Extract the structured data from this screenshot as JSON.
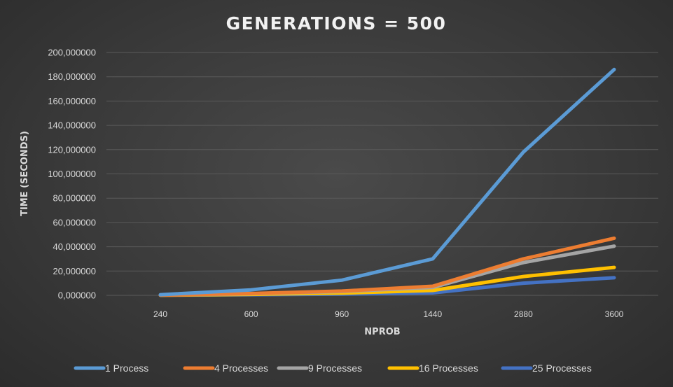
{
  "chart_data": {
    "type": "line",
    "title": "GENERATIONS = 500",
    "xlabel": "NPROB",
    "ylabel": "TIME (SECONDS)",
    "categories": [
      "240",
      "600",
      "960",
      "1440",
      "2880",
      "3600"
    ],
    "ylim": [
      0,
      200
    ],
    "yticks": [
      "0,000000",
      "20,000000",
      "40,000000",
      "60,000000",
      "80,000000",
      "100,000000",
      "120,000000",
      "140,000000",
      "160,000000",
      "180,000000",
      "200,000000"
    ],
    "grid": true,
    "legend_position": "bottom",
    "series": [
      {
        "name": "1 Process",
        "color": "#5b9bd5",
        "values": [
          0.5,
          4.5,
          12.5,
          30,
          118,
          186
        ]
      },
      {
        "name": "4 Processes",
        "color": "#ed7d31",
        "values": [
          0.2,
          1.5,
          3.5,
          7.5,
          30,
          47
        ]
      },
      {
        "name": "9 Processes",
        "color": "#a5a5a5",
        "values": [
          0.2,
          1.3,
          3.2,
          6.5,
          27,
          40.5
        ]
      },
      {
        "name": "16 Processes",
        "color": "#ffc000",
        "values": [
          0.1,
          0.8,
          1.8,
          4,
          15.5,
          23
        ]
      },
      {
        "name": "25 Processes",
        "color": "#4472c4",
        "values": [
          0.1,
          0.5,
          1.0,
          2.0,
          10,
          14.5
        ]
      }
    ]
  }
}
